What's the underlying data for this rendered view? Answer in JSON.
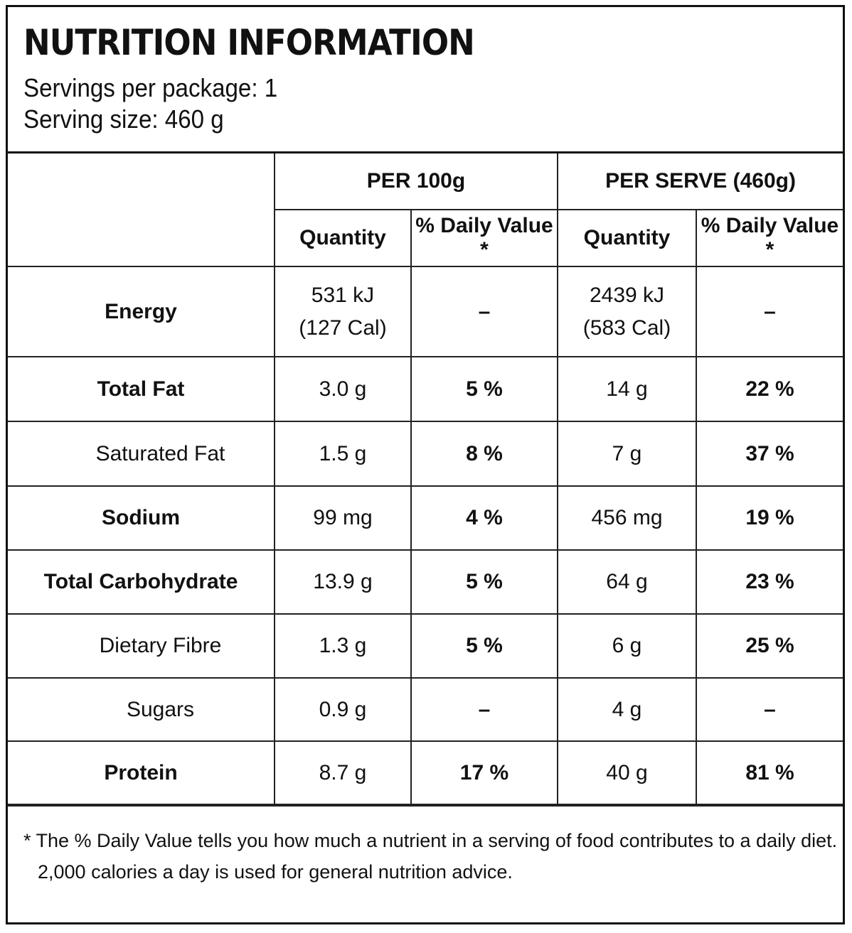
{
  "header": {
    "title": "NUTRITION INFORMATION",
    "servings_per_package": "Servings per package: 1",
    "serving_size": "Serving size: 460 g"
  },
  "columns": {
    "group_per_100g": "PER 100g",
    "group_per_serve": "PER SERVE (460g)",
    "quantity": "Quantity",
    "daily_value": "% Daily Value *"
  },
  "rows": [
    {
      "name": "Energy",
      "q100_line1": "531 kJ",
      "q100_line2": "(127 Cal)",
      "dv100": "–",
      "qserve_line1": "2439 kJ",
      "qserve_line2": "(583 Cal)",
      "dvserve": "–"
    },
    {
      "name": "Total Fat",
      "q100": "3.0 g",
      "dv100": "5 %",
      "qserve": "14 g",
      "dvserve": "22 %"
    },
    {
      "name": "Saturated Fat",
      "q100": "1.5 g",
      "dv100": "8 %",
      "qserve": "7 g",
      "dvserve": "37 %"
    },
    {
      "name": "Sodium",
      "q100": "99 mg",
      "dv100": "4 %",
      "qserve": "456 mg",
      "dvserve": "19 %"
    },
    {
      "name": "Total Carbohydrate",
      "q100": "13.9 g",
      "dv100": "5 %",
      "qserve": "64 g",
      "dvserve": "23 %"
    },
    {
      "name": "Dietary Fibre",
      "q100": "1.3 g",
      "dv100": "5 %",
      "qserve": "6 g",
      "dvserve": "25 %"
    },
    {
      "name": "Sugars",
      "q100": "0.9 g",
      "dv100": "–",
      "qserve": "4 g",
      "dvserve": "–"
    },
    {
      "name": "Protein",
      "q100": "8.7 g",
      "dv100": "17 %",
      "qserve": "40 g",
      "dvserve": "81 %"
    }
  ],
  "footnote": {
    "line1": "* The % Daily Value tells you how much a nutrient in a serving of food contributes to a daily diet.",
    "line2": "2,000 calories a day is used for general nutrition advice."
  }
}
